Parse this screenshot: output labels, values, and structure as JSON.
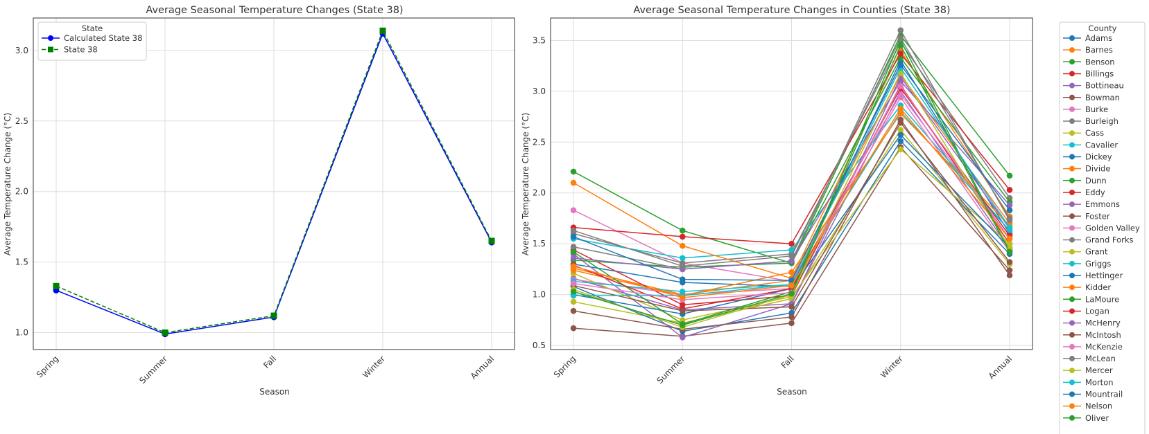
{
  "chart_data": [
    {
      "type": "line",
      "title": "Average Seasonal Temperature Changes (State 38)",
      "xlabel": "Season",
      "ylabel": "Average Temperature Change (°C)",
      "categories": [
        "Spring",
        "Summer",
        "Fall",
        "Winter",
        "Annual"
      ],
      "ylim": [
        0.88,
        3.23
      ],
      "yticks": [
        "1.0",
        "1.5",
        "2.0",
        "2.5",
        "3.0"
      ],
      "grid": true,
      "legend": {
        "title": "State",
        "placement": "top-left"
      },
      "series": [
        {
          "name": "Calculated State 38",
          "color": "#0000ff",
          "marker": "circle",
          "dash": "solid",
          "values": [
            1.3,
            0.99,
            1.11,
            3.12,
            1.64
          ]
        },
        {
          "name": "State 38",
          "color": "#008000",
          "marker": "square",
          "dash": "dashed",
          "values": [
            1.33,
            1.0,
            1.12,
            3.14,
            1.65
          ]
        }
      ]
    },
    {
      "type": "line",
      "title": "Average Seasonal Temperature Changes in Counties (State 38)",
      "xlabel": "Season",
      "ylabel": "Average Temperature Change (°C)",
      "categories": [
        "Spring",
        "Summer",
        "Fall",
        "Winter",
        "Annual"
      ],
      "ylim": [
        0.46,
        3.72
      ],
      "yticks": [
        "0.5",
        "1.0",
        "1.5",
        "2.0",
        "2.5",
        "3.0",
        "3.5"
      ],
      "grid": true,
      "legend": {
        "title": "County",
        "placement": "outside-right"
      },
      "series": [
        {
          "name": "Adams",
          "color": "#1f77b4",
          "values": [
            1.3,
            1.12,
            1.08,
            3.3,
            1.6
          ]
        },
        {
          "name": "Barnes",
          "color": "#ff7f0e",
          "values": [
            1.26,
            1.0,
            1.14,
            3.16,
            1.7
          ]
        },
        {
          "name": "Benson",
          "color": "#2ca02c",
          "values": [
            2.21,
            1.63,
            1.31,
            3.55,
            2.17
          ]
        },
        {
          "name": "Billings",
          "color": "#d62728",
          "values": [
            1.44,
            0.9,
            0.99,
            3.06,
            1.5
          ]
        },
        {
          "name": "Bottineau",
          "color": "#9467bd",
          "values": [
            1.16,
            0.85,
            0.91,
            3.0,
            1.45
          ]
        },
        {
          "name": "Bowman",
          "color": "#8c564b",
          "values": [
            0.67,
            0.59,
            0.72,
            2.45,
            1.24
          ]
        },
        {
          "name": "Burke",
          "color": "#e377c2",
          "values": [
            1.83,
            1.31,
            1.13,
            2.97,
            1.55
          ]
        },
        {
          "name": "Burleigh",
          "color": "#7f7f7f",
          "values": [
            1.6,
            1.31,
            1.4,
            3.48,
            1.95
          ]
        },
        {
          "name": "Cass",
          "color": "#bcbd22",
          "values": [
            0.93,
            0.72,
            0.96,
            2.62,
            1.3
          ]
        },
        {
          "name": "Cavalier",
          "color": "#17becf",
          "values": [
            1.55,
            1.36,
            1.44,
            2.86,
            1.63
          ]
        },
        {
          "name": "Dickey",
          "color": "#1f77b4",
          "values": [
            1.08,
            0.64,
            0.82,
            2.51,
            1.4
          ]
        },
        {
          "name": "Divide",
          "color": "#ff7f0e",
          "values": [
            2.1,
            1.48,
            1.16,
            3.4,
            1.77
          ]
        },
        {
          "name": "Dunn",
          "color": "#2ca02c",
          "values": [
            1.34,
            1.27,
            1.31,
            3.33,
            1.91
          ]
        },
        {
          "name": "Eddy",
          "color": "#d62728",
          "values": [
            1.66,
            1.57,
            1.5,
            3.37,
            2.03
          ]
        },
        {
          "name": "Emmons",
          "color": "#9467bd",
          "values": [
            1.4,
            0.58,
            0.91,
            3.14,
            1.65
          ]
        },
        {
          "name": "Foster",
          "color": "#8c564b",
          "values": [
            0.84,
            0.66,
            0.78,
            2.72,
            1.19
          ]
        },
        {
          "name": "Golden Valley",
          "color": "#e377c2",
          "values": [
            1.15,
            1.0,
            1.06,
            2.94,
            1.42
          ]
        },
        {
          "name": "Grand Forks",
          "color": "#7f7f7f",
          "values": [
            1.47,
            1.25,
            1.33,
            3.6,
            1.73
          ]
        },
        {
          "name": "Grant",
          "color": "#bcbd22",
          "values": [
            1.21,
            0.75,
            0.98,
            2.43,
            1.5
          ]
        },
        {
          "name": "Griggs",
          "color": "#17becf",
          "values": [
            1.13,
            1.03,
            1.1,
            2.8,
            1.63
          ]
        },
        {
          "name": "Hettinger",
          "color": "#1f77b4",
          "values": [
            1.0,
            0.81,
            1.06,
            2.57,
            1.46
          ]
        },
        {
          "name": "Kidder",
          "color": "#ff7f0e",
          "values": [
            1.24,
            0.99,
            1.22,
            2.78,
            1.68
          ]
        },
        {
          "name": "LaMoure",
          "color": "#2ca02c",
          "values": [
            1.42,
            0.71,
            1.03,
            3.5,
            1.43
          ]
        },
        {
          "name": "Logan",
          "color": "#d62728",
          "values": [
            1.29,
            0.86,
            1.06,
            3.03,
            1.58
          ]
        },
        {
          "name": "McHenry",
          "color": "#9467bd",
          "values": [
            1.36,
            1.25,
            1.33,
            3.1,
            1.88
          ]
        },
        {
          "name": "McIntosh",
          "color": "#8c564b",
          "values": [
            1.09,
            0.84,
            0.88,
            2.69,
            1.32
          ]
        },
        {
          "name": "McKenzie",
          "color": "#e377c2",
          "values": [
            1.11,
            0.95,
            1.02,
            3.05,
            1.55
          ]
        },
        {
          "name": "McLean",
          "color": "#7f7f7f",
          "values": [
            1.63,
            1.28,
            1.38,
            3.52,
            1.75
          ]
        },
        {
          "name": "Mercer",
          "color": "#bcbd22",
          "values": [
            1.05,
            0.68,
            1.0,
            3.18,
            1.46
          ]
        },
        {
          "name": "Morton",
          "color": "#17becf",
          "values": [
            0.99,
            0.99,
            1.1,
            3.23,
            1.66
          ]
        },
        {
          "name": "Mountrail",
          "color": "#1f77b4",
          "values": [
            1.57,
            1.15,
            1.14,
            3.26,
            1.83
          ]
        },
        {
          "name": "Nelson",
          "color": "#ff7f0e",
          "values": [
            1.28,
            0.97,
            1.09,
            2.83,
            1.55
          ]
        },
        {
          "name": "Oliver",
          "color": "#2ca02c",
          "values": [
            1.03,
            0.7,
            1.01,
            3.45,
            1.42
          ]
        }
      ]
    }
  ]
}
